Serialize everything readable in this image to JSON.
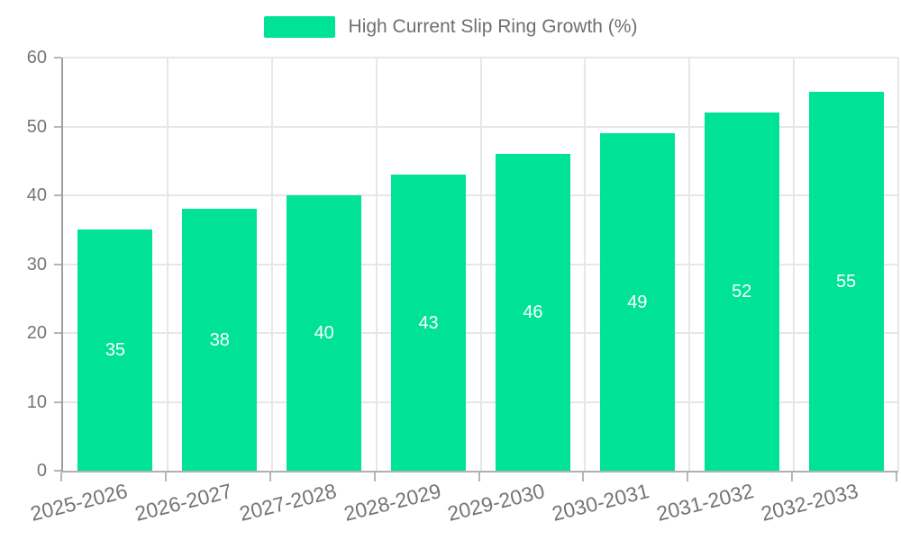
{
  "chart_data": {
    "type": "bar",
    "title": "High Current Slip Ring Growth (%)",
    "categories": [
      "2025-2026",
      "2026-2027",
      "2027-2028",
      "2028-2029",
      "2029-2030",
      "2030-2031",
      "2031-2032",
      "2032-2033"
    ],
    "series": [
      {
        "name": "High Current Slip Ring Growth (%)",
        "values": [
          35,
          38,
          40,
          43,
          46,
          49,
          52,
          55
        ]
      }
    ],
    "xlabel": "",
    "ylabel": "",
    "ylim": [
      0,
      60
    ],
    "yticks": [
      0,
      10,
      20,
      30,
      40,
      50,
      60
    ],
    "grid": true,
    "legend_position": "top",
    "colors": {
      "bar": "#00E396",
      "data_label": "#ffffff",
      "axis_label": "#757575",
      "legend_label": "#6f6f6f",
      "gridline": "#e7e7e7",
      "axis_line": "#b1b1b1",
      "tick_mark": "#b6b6b6"
    }
  }
}
